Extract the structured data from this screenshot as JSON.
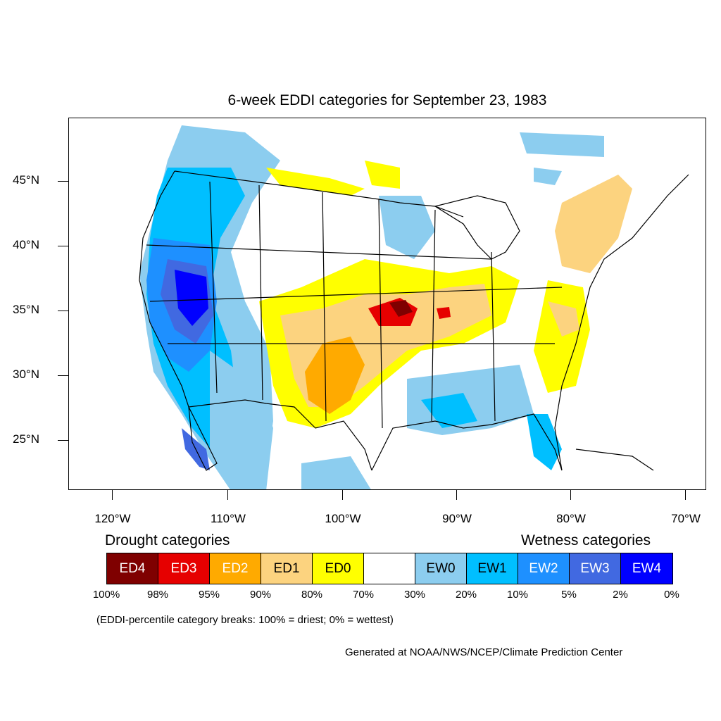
{
  "title": "6-week EDDI categories for September 23, 1983",
  "lat_labels": [
    "45°N",
    "40°N",
    "35°N",
    "30°N",
    "25°N"
  ],
  "lon_labels": [
    "120°W",
    "110°W",
    "100°W",
    "90°W",
    "80°W",
    "70°W"
  ],
  "legend": {
    "drought_heading": "Drought categories",
    "wetness_heading": "Wetness categories",
    "categories": [
      {
        "label": "ED4",
        "color": "#7f0000",
        "text_color": "#ffffff"
      },
      {
        "label": "ED3",
        "color": "#e60000",
        "text_color": "#ffffff"
      },
      {
        "label": "ED2",
        "color": "#ffaa00",
        "text_color": "#ffffff"
      },
      {
        "label": "ED1",
        "color": "#fcd37f",
        "text_color": "#000000"
      },
      {
        "label": "ED0",
        "color": "#ffff00",
        "text_color": "#000000"
      },
      {
        "label": "",
        "color": "#ffffff",
        "text_color": "#000000"
      },
      {
        "label": "EW0",
        "color": "#8ccdef",
        "text_color": "#000000"
      },
      {
        "label": "EW1",
        "color": "#00bfff",
        "text_color": "#000000"
      },
      {
        "label": "EW2",
        "color": "#1e90ff",
        "text_color": "#ffffff"
      },
      {
        "label": "EW3",
        "color": "#4169e1",
        "text_color": "#ffffff"
      },
      {
        "label": "EW4",
        "color": "#0000ff",
        "text_color": "#ffffff"
      }
    ],
    "breaks": [
      "100%",
      "98%",
      "95%",
      "90%",
      "80%",
      "70%",
      "30%",
      "20%",
      "10%",
      "5%",
      "2%",
      "0%"
    ],
    "note": "(EDDI-percentile category breaks: 100% = driest; 0% = wettest)"
  },
  "credit": "Generated at NOAA/NWS/NCEP/Climate Prediction Center"
}
